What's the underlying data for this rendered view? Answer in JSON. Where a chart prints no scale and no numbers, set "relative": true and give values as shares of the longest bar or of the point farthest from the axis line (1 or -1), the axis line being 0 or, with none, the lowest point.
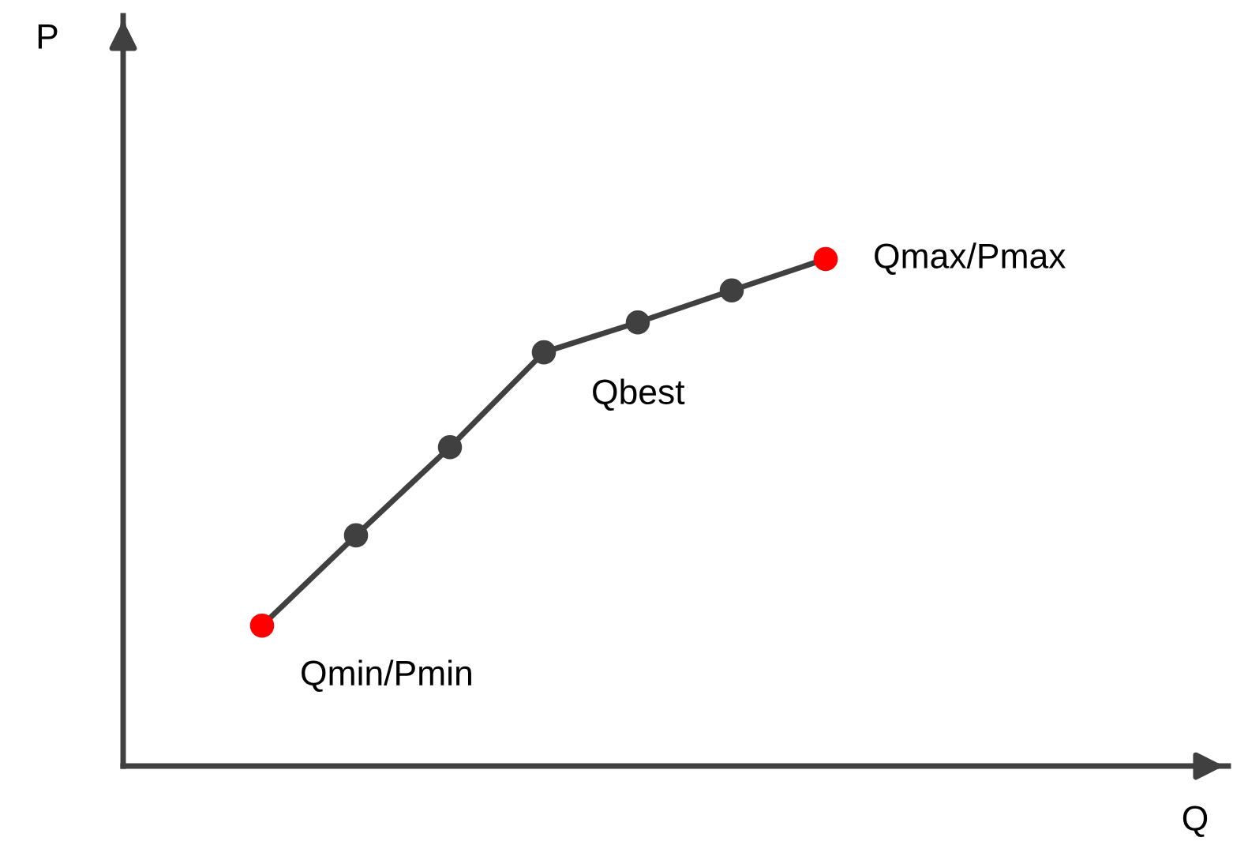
{
  "chart_data": {
    "type": "line",
    "relative": true,
    "categories": [
      null,
      null,
      null,
      null,
      null,
      null,
      null
    ],
    "series": [
      {
        "color": "#404040",
        "colors": [
          "#ff0000",
          "#404040",
          "#404040",
          "#404040",
          "#404040",
          "#404040",
          "#ff0000"
        ],
        "values": [
          0.277,
          0.455,
          0.629,
          0.816,
          0.875,
          0.938,
          1
        ]
      }
    ],
    "annotations": [
      "Qmin/Pmin",
      "Qbest",
      "Qmax/Pmax",
      "P",
      "Q"
    ],
    "marker": "circle",
    "line_style": "solid",
    "legend": false
  }
}
